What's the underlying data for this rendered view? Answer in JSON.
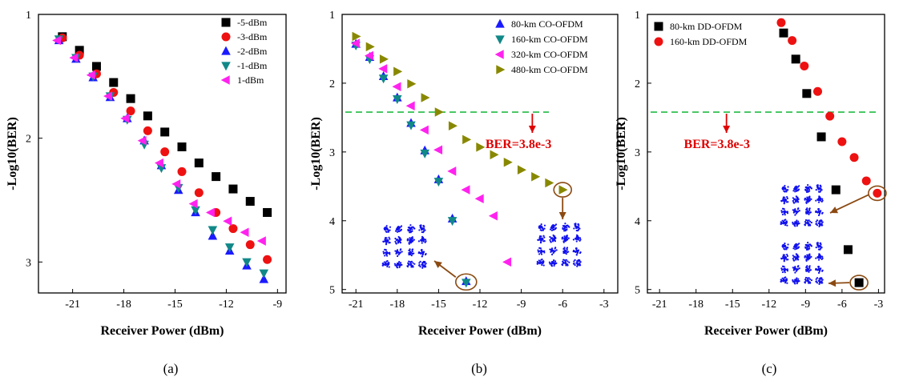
{
  "chart_data": [
    {
      "type": "scatter",
      "panel_caption": "(a)",
      "xlabel": "Receiver Power (dBm)",
      "ylabel": "-Log10(BER)",
      "xlim": [
        -23,
        -8.5
      ],
      "ylim": [
        1,
        3.25
      ],
      "y_inverted": true,
      "xticks": [
        -21,
        -18,
        -15,
        -12,
        -9
      ],
      "yticks": [
        1,
        2,
        3
      ],
      "legend_position": "top-right",
      "series": [
        {
          "name": "-5-dBm",
          "marker": "square",
          "color": "#000000",
          "x": [
            -21.6,
            -20.6,
            -19.6,
            -18.6,
            -17.6,
            -16.6,
            -15.6,
            -14.6,
            -13.6,
            -12.6,
            -11.6,
            -10.6,
            -9.6
          ],
          "y": [
            1.18,
            1.29,
            1.42,
            1.55,
            1.68,
            1.82,
            1.95,
            2.07,
            2.2,
            2.31,
            2.41,
            2.51,
            2.6
          ]
        },
        {
          "name": "-3-dBm",
          "marker": "circle",
          "color": "#ee1111",
          "x": [
            -21.6,
            -20.6,
            -19.6,
            -18.6,
            -17.6,
            -16.6,
            -15.6,
            -14.6,
            -13.6,
            -12.6,
            -11.6,
            -10.6,
            -9.6
          ],
          "y": [
            1.19,
            1.33,
            1.48,
            1.63,
            1.78,
            1.94,
            2.11,
            2.27,
            2.44,
            2.6,
            2.73,
            2.86,
            2.98
          ]
        },
        {
          "name": "-2-dBm",
          "marker": "triangle-up",
          "color": "#1a1aff",
          "x": [
            -21.8,
            -20.8,
            -19.8,
            -18.8,
            -17.8,
            -16.8,
            -15.8,
            -14.8,
            -13.8,
            -12.8,
            -11.8,
            -10.8,
            -9.8
          ],
          "y": [
            1.21,
            1.36,
            1.51,
            1.67,
            1.84,
            2.02,
            2.22,
            2.42,
            2.6,
            2.79,
            2.91,
            3.03,
            3.14
          ]
        },
        {
          "name": "-1-dBm",
          "marker": "triangle-down",
          "color": "#118888",
          "x": [
            -21.8,
            -20.8,
            -19.8,
            -18.8,
            -17.8,
            -16.8,
            -15.8,
            -14.8,
            -13.8,
            -12.8,
            -11.8,
            -10.8,
            -9.8
          ],
          "y": [
            1.2,
            1.35,
            1.5,
            1.66,
            1.85,
            2.05,
            2.24,
            2.4,
            2.58,
            2.74,
            2.88,
            3.0,
            3.09
          ]
        },
        {
          "name": "1-dBm",
          "marker": "triangle-left",
          "color": "#ff22ee",
          "x": [
            -21.9,
            -20.9,
            -19.9,
            -18.9,
            -17.9,
            -16.9,
            -15.9,
            -14.9,
            -13.9,
            -12.9,
            -11.9,
            -10.9,
            -9.9
          ],
          "y": [
            1.21,
            1.35,
            1.49,
            1.66,
            1.84,
            2.02,
            2.2,
            2.37,
            2.53,
            2.6,
            2.67,
            2.76,
            2.83
          ]
        }
      ]
    },
    {
      "type": "scatter",
      "panel_caption": "(b)",
      "xlabel": "Receiver Power (dBm)",
      "ylabel": "-Log10(BER)",
      "xlim": [
        -22,
        -2
      ],
      "ylim": [
        1,
        5.05
      ],
      "y_inverted": true,
      "xticks": [
        -21,
        -18,
        -15,
        -12,
        -9,
        -6,
        -3
      ],
      "yticks": [
        1,
        2,
        3,
        4,
        5
      ],
      "legend_position": "top-right",
      "threshold_label": "BER=3.8e-3",
      "threshold_y": 2.42,
      "series": [
        {
          "name": "80-km CO-OFDM",
          "marker": "triangle-up",
          "color": "#1a1aff",
          "x": [
            -21,
            -20,
            -19,
            -18,
            -17,
            -16,
            -15,
            -14,
            -13
          ],
          "y": [
            1.43,
            1.62,
            1.9,
            2.21,
            2.58,
            2.98,
            3.4,
            3.97,
            4.88
          ]
        },
        {
          "name": "160-km CO-OFDM",
          "marker": "triangle-down",
          "color": "#118888",
          "x": [
            -21,
            -20,
            -19,
            -18,
            -17,
            -16,
            -15,
            -14,
            -13
          ],
          "y": [
            1.45,
            1.65,
            1.93,
            2.23,
            2.61,
            3.02,
            3.43,
            4.0,
            4.9
          ]
        },
        {
          "name": "320-km CO-OFDM",
          "marker": "triangle-left",
          "color": "#ff22ee",
          "x": [
            -21,
            -20,
            -19,
            -18,
            -17,
            -16,
            -15,
            -14,
            -13,
            -12,
            -11,
            -10
          ],
          "y": [
            1.42,
            1.6,
            1.79,
            2.05,
            2.33,
            2.68,
            2.97,
            3.28,
            3.55,
            3.68,
            3.93,
            4.6
          ]
        },
        {
          "name": "480-km CO-OFDM",
          "marker": "triangle-right",
          "color": "#888800",
          "x": [
            -21,
            -20,
            -19,
            -18,
            -17,
            -16,
            -15,
            -14,
            -13,
            -12,
            -11,
            -10,
            -9,
            -8,
            -7,
            -6
          ],
          "y": [
            1.32,
            1.47,
            1.65,
            1.83,
            2.01,
            2.21,
            2.42,
            2.62,
            2.82,
            2.93,
            3.04,
            3.15,
            3.26,
            3.36,
            3.45,
            3.55
          ]
        }
      ]
    },
    {
      "type": "scatter",
      "panel_caption": "(c)",
      "xlabel": "Receiver Power (dBm)",
      "ylabel": "-Log10(BER)",
      "xlim": [
        -22,
        -2.5
      ],
      "ylim": [
        1,
        5.05
      ],
      "y_inverted": true,
      "xticks": [
        -21,
        -18,
        -15,
        -12,
        -9,
        -6,
        -3
      ],
      "yticks": [
        1,
        2,
        3,
        4,
        5
      ],
      "legend_position": "top-left",
      "threshold_label": "BER=3.8e-3",
      "threshold_y": 2.42,
      "series": [
        {
          "name": "80-km DD-OFDM",
          "marker": "square",
          "color": "#000000",
          "x": [
            -10.8,
            -9.8,
            -8.9,
            -7.7,
            -6.5,
            -5.5,
            -4.6
          ],
          "y": [
            1.27,
            1.65,
            2.15,
            2.78,
            3.55,
            4.42,
            4.9
          ]
        },
        {
          "name": "160-km DD-OFDM",
          "marker": "circle",
          "color": "#ee1111",
          "x": [
            -11,
            -10.1,
            -9.1,
            -8,
            -7,
            -6,
            -5,
            -4,
            -3.1
          ],
          "y": [
            1.12,
            1.38,
            1.75,
            2.12,
            2.48,
            2.85,
            3.08,
            3.42,
            3.6
          ]
        }
      ]
    }
  ]
}
